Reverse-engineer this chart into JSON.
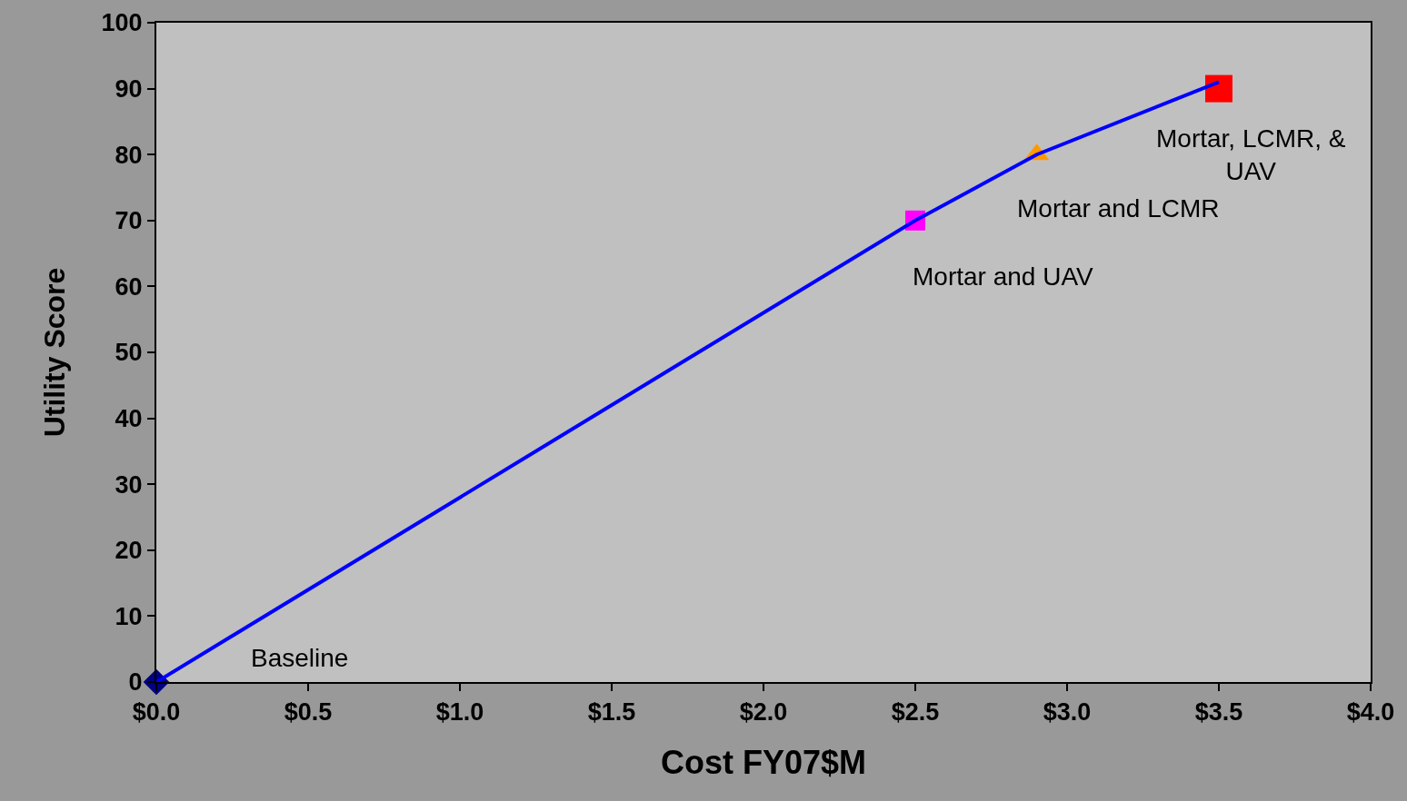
{
  "chart_data": {
    "type": "scatter",
    "xlabel": "Cost FY07$M",
    "ylabel": "Utility Score",
    "xlim": [
      0,
      4
    ],
    "ylim": [
      0,
      100
    ],
    "xticks": [
      {
        "value": 0,
        "label": "$0.0"
      },
      {
        "value": 0.5,
        "label": "$0.5"
      },
      {
        "value": 1,
        "label": "$1.0"
      },
      {
        "value": 1.5,
        "label": "$1.5"
      },
      {
        "value": 2,
        "label": "$2.0"
      },
      {
        "value": 2.5,
        "label": "$2.5"
      },
      {
        "value": 3,
        "label": "$3.0"
      },
      {
        "value": 3.5,
        "label": "$3.5"
      },
      {
        "value": 4,
        "label": "$4.0"
      }
    ],
    "yticks": [
      0,
      10,
      20,
      30,
      40,
      50,
      60,
      70,
      80,
      90,
      100
    ],
    "grid": false,
    "series": [
      {
        "color": "#000080",
        "marker": "diamond",
        "x": [
          0
        ],
        "values": [
          0
        ]
      },
      {
        "color": "#ff00ff",
        "marker": "square",
        "x": [
          2.5
        ],
        "values": [
          70
        ]
      },
      {
        "color": "#ff9900",
        "marker": "triangle",
        "x": [
          2.9
        ],
        "values": [
          80
        ]
      },
      {
        "color": "#ff0000",
        "marker": "square",
        "x": [
          3.5
        ],
        "values": [
          90
        ]
      },
      {
        "type": "line",
        "color": "#0000ff",
        "marker": "none",
        "x": [
          0,
          2.5,
          2.9,
          3.5
        ],
        "values": [
          0,
          70,
          80,
          91
        ]
      }
    ],
    "annotations": [
      "Baseline",
      {
        "text": "Mortar and UAV",
        "x": 2.5,
        "y": 70
      },
      {
        "text": "Mortar and LCMR",
        "x": 2.9,
        "y": 80
      },
      {
        "text": "Mortar, LCMR, &\nUAV",
        "x": 3.5,
        "y": 90
      }
    ]
  }
}
